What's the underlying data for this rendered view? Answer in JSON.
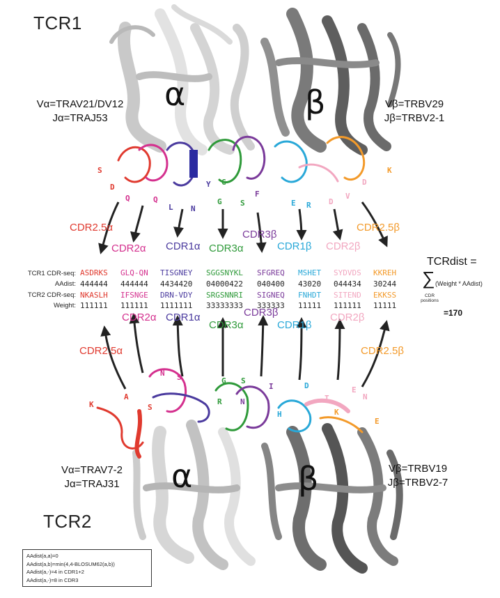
{
  "tcr1": {
    "title": "TCR1",
    "alpha_gene_lines": [
      "Vα=TRAV21/DV12",
      "Jα=TRAJ53"
    ],
    "beta_gene_lines": [
      "Vβ=TRBV29",
      "Jβ=TRBV2-1"
    ],
    "alpha_symbol": "α",
    "beta_symbol": "β"
  },
  "tcr2": {
    "title": "TCR2",
    "alpha_gene_lines": [
      "Vα=TRAV7-2",
      "Jα=TRAJ31"
    ],
    "beta_gene_lines": [
      "Vβ=TRBV19",
      "Jβ=TRBV2-7"
    ],
    "alpha_symbol": "α",
    "beta_symbol": "β"
  },
  "colors": {
    "CDR2.5α": "#e03a2f",
    "CDR2α": "#d4308e",
    "CDR1α": "#4a3a9e",
    "CDR3α": "#2f9a3a",
    "CDR3β": "#7a3a9a",
    "CDR1β": "#29a8d8",
    "CDR2β": "#f2a7c0",
    "CDR2.5β": "#f39a2a"
  },
  "cdr_labels_top": [
    "CDR2.5α",
    "CDR2α",
    "CDR1α",
    "CDR3α",
    "CDR3β",
    "CDR1β",
    "CDR2β",
    "CDR2.5β"
  ],
  "cdr_labels_bottom": [
    "CDR2.5α",
    "CDR2α",
    "CDR1α",
    "CDR3α",
    "CDR3β",
    "CDR1β",
    "CDR2β",
    "CDR2.5β"
  ],
  "residues_top": [
    "S",
    "D",
    "Q",
    "Q",
    "L",
    "N",
    "Y",
    "G",
    "G",
    "S",
    "F",
    "E",
    "R",
    "D",
    "V",
    "D",
    "K"
  ],
  "residues_bottom": [
    "K",
    "A",
    "S",
    "N",
    "S",
    "G",
    "S",
    "R",
    "N",
    "I",
    "H",
    "D",
    "T",
    "E",
    "N",
    "K",
    "E"
  ],
  "table": {
    "row_labels": [
      "TCR1 CDR-seq:",
      "AAdist:",
      "TCR2 CDR-seq:",
      "Weight:"
    ],
    "tcr1_seq": [
      "ASDRKS",
      "GLQ-QN",
      "TISGNEY",
      "SGGSNYKL",
      "SFGREQ",
      "MSHET",
      "SYDVDS",
      "KKREH"
    ],
    "aadist": [
      "444444",
      "444444",
      "4434420",
      "04000422",
      "040400",
      "43020",
      "044434",
      "30244"
    ],
    "tcr2_seq": [
      "NKASLH",
      "IFSNGE",
      "DRN-VDY",
      "SRGSNNRI",
      "SIGNEQ",
      "FNHDT",
      "SITEND",
      "EKKSS"
    ],
    "weight": [
      "111111",
      "111111",
      "1111111",
      "33333333",
      "333333",
      "11111",
      "111111",
      "11111"
    ]
  },
  "formula": {
    "title": "TCRdist =",
    "sigma": "∑",
    "expression": "(Weight * AAdist)",
    "sub_1": "CDR",
    "sub_2": "positions",
    "total": "=170"
  },
  "legend": [
    "AAdist(a,a)=0",
    "AAdist(a,b)=min(4,4-BLOSUM62(a,b))",
    "AAdist(a,-)=4 in CDR1+2",
    "AAdist(a,-)=8 in CDR3"
  ]
}
